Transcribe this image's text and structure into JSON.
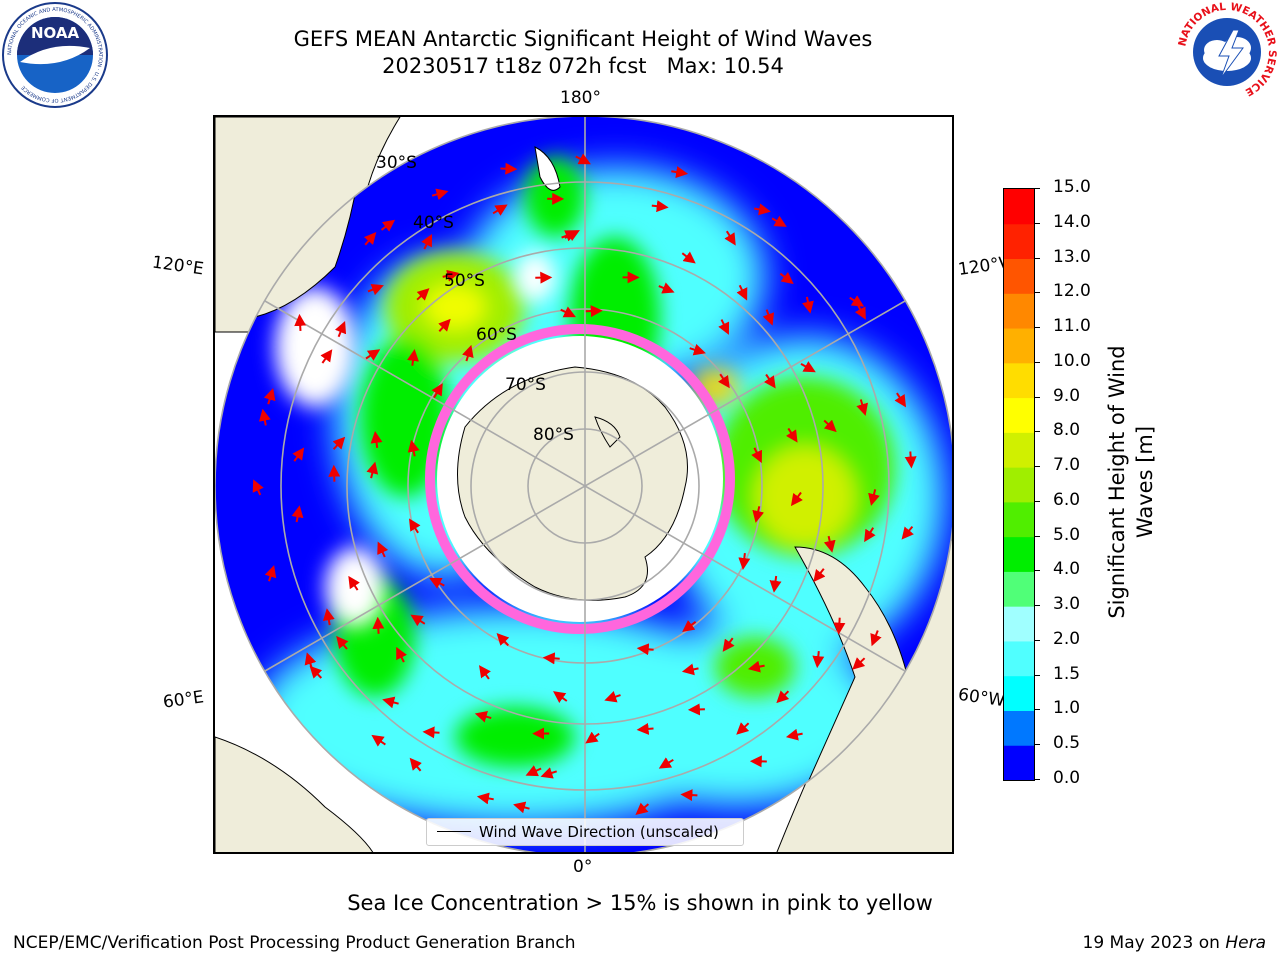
{
  "header": {
    "title_line1": "GEFS MEAN Antarctic Significant Height of Wind Waves",
    "title_line2": "20230517 t18z 072h fcst   Max: 10.54"
  },
  "logos": {
    "noaa_text": "NOAA",
    "noaa_ring": "NATIONAL OCEANIC AND ATMOSPHERIC ADMINISTRATION · U.S. DEPARTMENT OF COMMERCE",
    "nws_ring": "NATIONAL WEATHER SERVICE"
  },
  "map": {
    "longitude_labels": {
      "top": "180°",
      "bottom": "0°",
      "upper_left": "120°E",
      "upper_right": "120°W",
      "lower_left": "60°E",
      "lower_right": "60°W"
    },
    "latitude_labels": [
      "30°S",
      "40°S",
      "50°S",
      "60°S",
      "70°S",
      "80°S"
    ],
    "legend_label": "Wind Wave Direction (unscaled)"
  },
  "colorbar": {
    "title": "Significant Height of Wind Waves [m]",
    "ticks": [
      "0.0",
      "0.5",
      "1.0",
      "1.5",
      "2.0",
      "3.0",
      "4.0",
      "5.0",
      "6.0",
      "7.0",
      "8.0",
      "9.0",
      "10.0",
      "11.0",
      "12.0",
      "13.0",
      "14.0",
      "15.0"
    ],
    "colors": [
      "#0000ff",
      "#0078ff",
      "#00ffff",
      "#50ffff",
      "#a0ffff",
      "#50ff78",
      "#00ee00",
      "#50ee00",
      "#a0ee00",
      "#d0f000",
      "#ffff00",
      "#ffdd00",
      "#ffb000",
      "#ff8800",
      "#ff5500",
      "#ff2200",
      "#ff0000"
    ]
  },
  "bottom_note": "Sea Ice Concentration > 15% is shown in pink to yellow",
  "footer": {
    "left": "NCEP/EMC/Verification Post Processing Product Generation Branch",
    "right_prefix": "19 May 2023 on ",
    "right_machine": "Hera"
  }
}
